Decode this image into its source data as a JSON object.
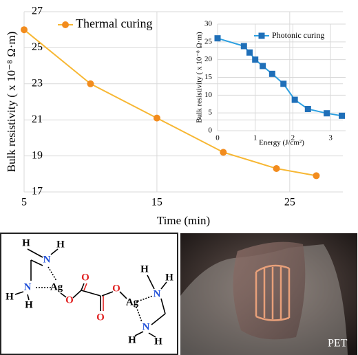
{
  "chart_data": [
    {
      "type": "line",
      "x_label": "Time (min)",
      "y_label": "Bulk resistivity ( x 10⁻⁸ Ω·m)",
      "x": [
        5,
        10,
        15,
        20,
        24,
        27
      ],
      "series": [
        {
          "name": "Thermal curing",
          "color": "#f7b733",
          "marker_color": "#f28c1e",
          "marker": "circle",
          "values": [
            26,
            23,
            21.1,
            19.2,
            18.3,
            17.9
          ]
        }
      ],
      "xlim": [
        5,
        29
      ],
      "xticks": [
        5,
        15,
        25
      ],
      "ylim": [
        17,
        27
      ],
      "yticks": [
        17,
        19,
        21,
        23,
        25,
        27
      ],
      "grid": true
    },
    {
      "type": "line",
      "x_label": "Energy (J/cm²)",
      "y_label": "Bulk resistivity ( x 10⁻⁸ Ω·m)",
      "x": [
        0,
        0.7,
        0.85,
        1.0,
        1.2,
        1.45,
        1.75,
        2.05,
        2.4,
        2.9,
        3.3
      ],
      "series": [
        {
          "name": "Photonic curing",
          "color": "#2b9fe0",
          "marker_color": "#1f6fb8",
          "marker": "square",
          "values": [
            26,
            23.8,
            22,
            20,
            18.2,
            16,
            13.2,
            8.7,
            6.1,
            4.9,
            4.2
          ]
        }
      ],
      "xlim": [
        0,
        3.4
      ],
      "xticks": [
        0,
        1,
        2,
        3
      ],
      "ylim": [
        0,
        30
      ],
      "yticks": [
        0,
        5,
        10,
        15,
        20,
        25,
        30
      ],
      "grid": true
    }
  ],
  "structure": {
    "atoms": [
      "H",
      "H",
      "N",
      "N",
      "H",
      "H",
      "Ag",
      "O",
      "O",
      "O",
      "O",
      "Ag",
      "N",
      "H",
      "H",
      "N",
      "H",
      "H"
    ]
  },
  "photo": {
    "label": "PET"
  }
}
